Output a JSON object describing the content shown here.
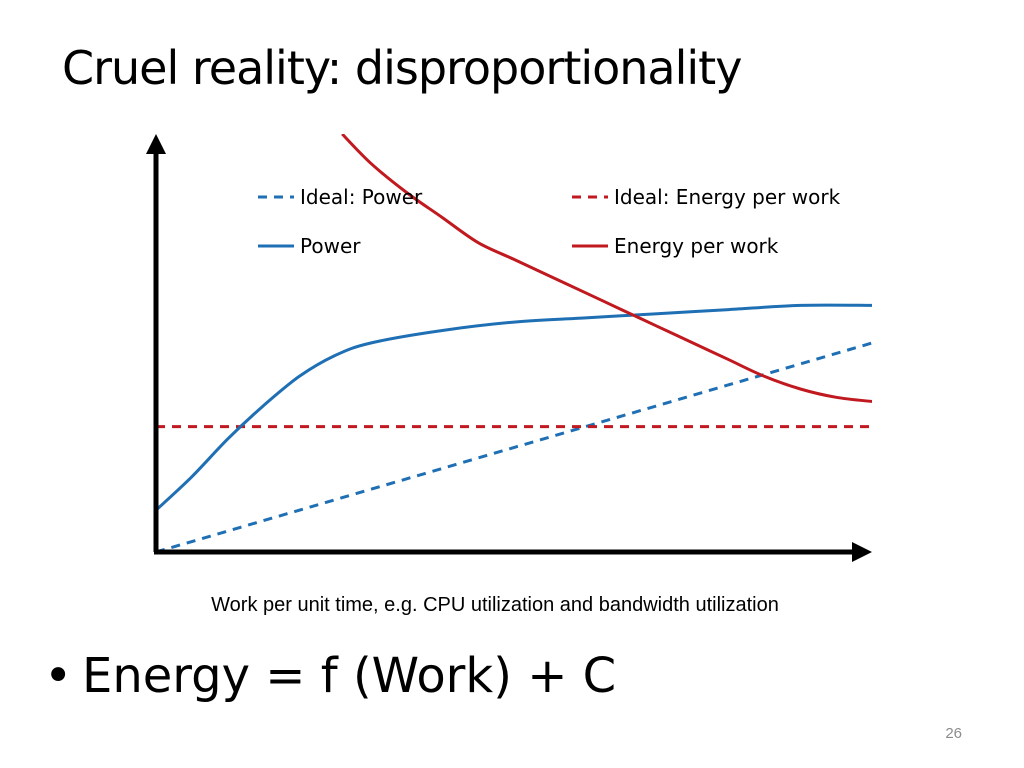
{
  "slide": {
    "title": "Cruel reality: disproportionality",
    "bullet_marker": "•",
    "bullet_text": "Energy = f (Work) + C",
    "page_number": "26"
  },
  "chart_data": {
    "type": "line",
    "title": "",
    "xlabel": "Work per unit time, e.g. CPU utilization and bandwidth utilization",
    "ylabel": "",
    "xlim": [
      0,
      100
    ],
    "ylim": [
      0,
      100
    ],
    "x_ticks": false,
    "y_ticks": false,
    "grid": false,
    "legend_position": "top",
    "series": [
      {
        "name": "Ideal: Power",
        "color": "#1f6fb4",
        "dash": "dashed",
        "x": [
          0,
          100
        ],
        "y": [
          0,
          50
        ]
      },
      {
        "name": "Ideal: Energy per work",
        "color": "#c0191f",
        "dash": "dashed",
        "x": [
          0,
          100
        ],
        "y": [
          30,
          30
        ]
      },
      {
        "name": "Power",
        "color": "#1f6fb4",
        "dash": "solid",
        "x": [
          0,
          5,
          10,
          15,
          20,
          25,
          30,
          40,
          50,
          60,
          70,
          80,
          90,
          100
        ],
        "y": [
          10,
          18,
          27,
          35,
          42,
          47,
          50,
          53,
          55,
          56,
          57,
          58,
          59,
          59
        ]
      },
      {
        "name": "Energy per work",
        "color": "#c0191f",
        "dash": "solid",
        "x": [
          26,
          30,
          35,
          40,
          45,
          50,
          55,
          60,
          65,
          70,
          75,
          80,
          85,
          90,
          95,
          100
        ],
        "y": [
          100,
          93,
          86,
          80,
          74,
          70,
          66,
          62,
          58,
          54,
          50,
          46,
          42,
          39,
          37,
          36
        ]
      }
    ]
  }
}
